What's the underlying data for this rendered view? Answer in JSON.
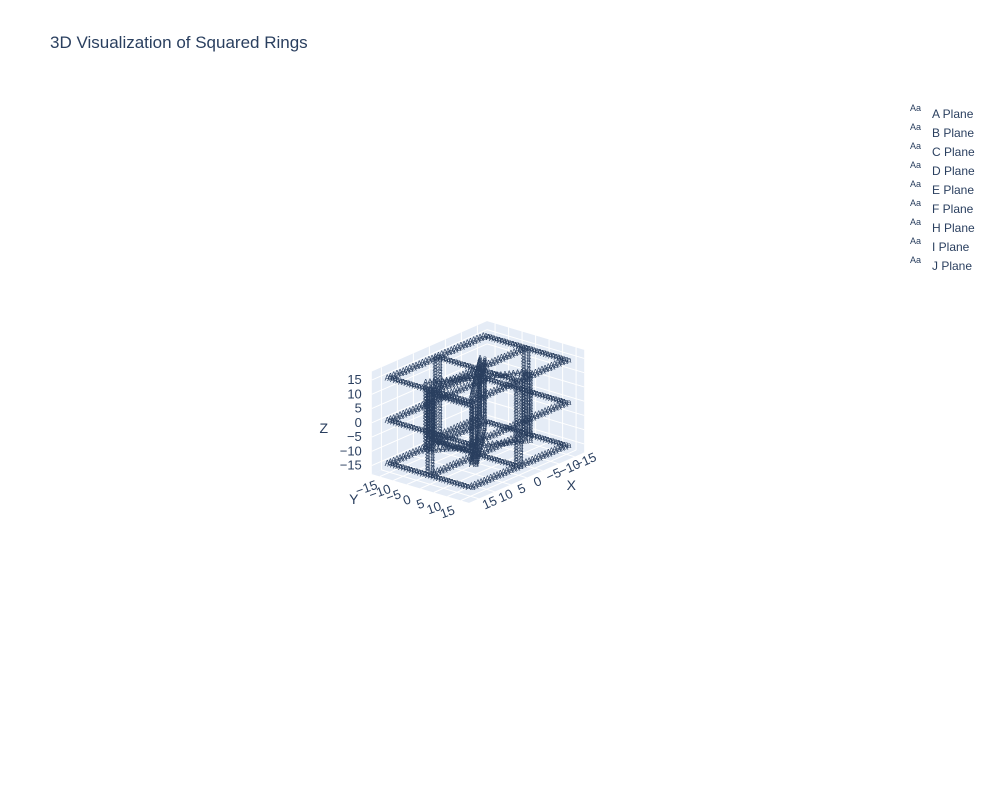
{
  "chart_data": {
    "type": "scatter3d",
    "title": "3D Visualization of Squared Rings",
    "marker_symbol": "Aa",
    "marker_mode": "text",
    "axes": {
      "x": {
        "label": "X",
        "range": [
          -18,
          18
        ],
        "ticks": [
          -15,
          -10,
          -5,
          0,
          5,
          10,
          15
        ],
        "tick_labels": [
          "−15",
          "−10",
          "−5",
          "0",
          "5",
          "10",
          "15"
        ]
      },
      "y": {
        "label": "Y",
        "range": [
          -18,
          18
        ],
        "ticks": [
          -15,
          -10,
          -5,
          0,
          5,
          10,
          15
        ],
        "tick_labels": [
          "−15",
          "−10",
          "−5",
          "0",
          "5",
          "10",
          "15"
        ]
      },
      "z": {
        "label": "Z",
        "range": [
          -18,
          18
        ],
        "ticks": [
          -15,
          -10,
          -5,
          0,
          5,
          10,
          15
        ],
        "tick_labels": [
          "−15",
          "−10",
          "−5",
          "0",
          "5",
          "10",
          "15"
        ]
      }
    },
    "series": [
      {
        "name": "A Plane",
        "plane": "z",
        "offset": 15,
        "half_size": 15
      },
      {
        "name": "B Plane",
        "plane": "z",
        "offset": 0,
        "half_size": 15
      },
      {
        "name": "C Plane",
        "plane": "z",
        "offset": -15,
        "half_size": 15
      },
      {
        "name": "D Plane",
        "plane": "x",
        "offset": 0,
        "half_size": 15
      },
      {
        "name": "E Plane",
        "plane": "y",
        "offset": 0,
        "half_size": 15
      },
      {
        "name": "F Plane",
        "plane": "x",
        "offset": 8,
        "half_size": 8
      },
      {
        "name": "H Plane",
        "plane": "y",
        "offset": -8,
        "half_size": 8
      },
      {
        "name": "I Plane",
        "plane": "diag1",
        "offset": 0,
        "half_size": 12
      },
      {
        "name": "J Plane",
        "plane": "diag2",
        "offset": 0,
        "half_size": 12
      }
    ],
    "legend_position": "top-right",
    "grid": true,
    "colors": {
      "text": "#2a3f5f",
      "marker": "#2a3f5f",
      "pane": "#e5ecf6",
      "grid": "#ffffff",
      "background": "#ffffff"
    }
  }
}
